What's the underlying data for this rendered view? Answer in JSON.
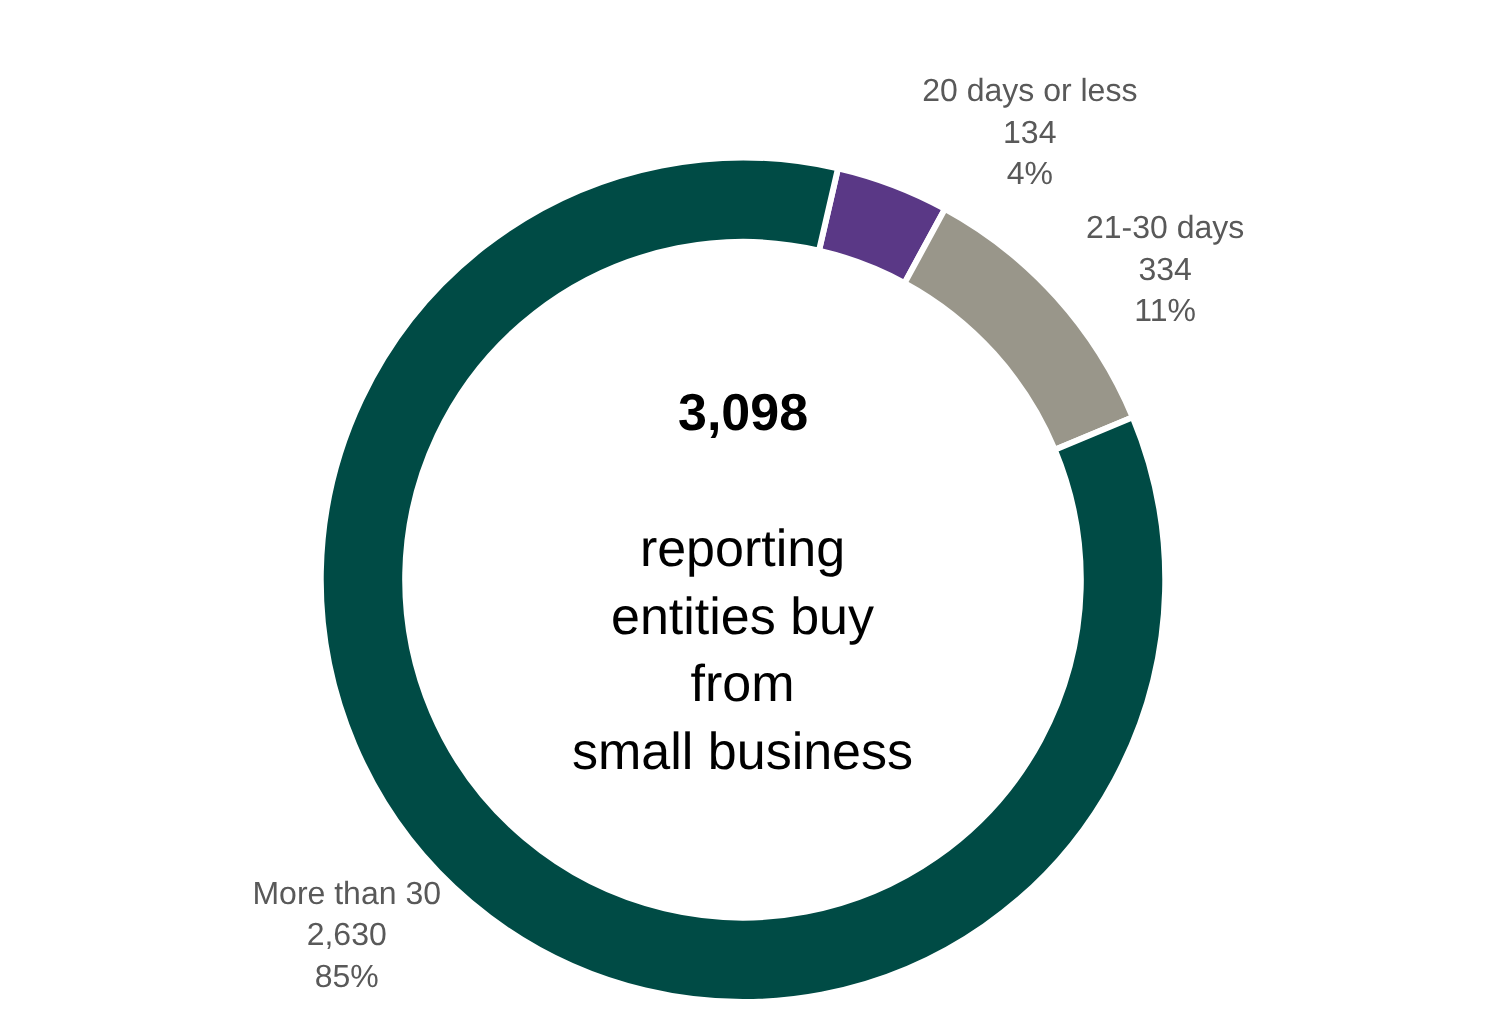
{
  "chart_data": {
    "type": "donut",
    "categories": [
      "20 days or less",
      "21-30 days",
      "More than 30"
    ],
    "values": [
      134,
      334,
      2630
    ],
    "colors": [
      "#5a3886",
      "#99968a",
      "#004b45"
    ],
    "value_labels": [
      "134\n4%",
      "334\n11%",
      "2,630\n85%"
    ],
    "annotations": [
      "3,098",
      "reporting\nentities buy\nfrom\nsmall business"
    ],
    "legend": false
  }
}
